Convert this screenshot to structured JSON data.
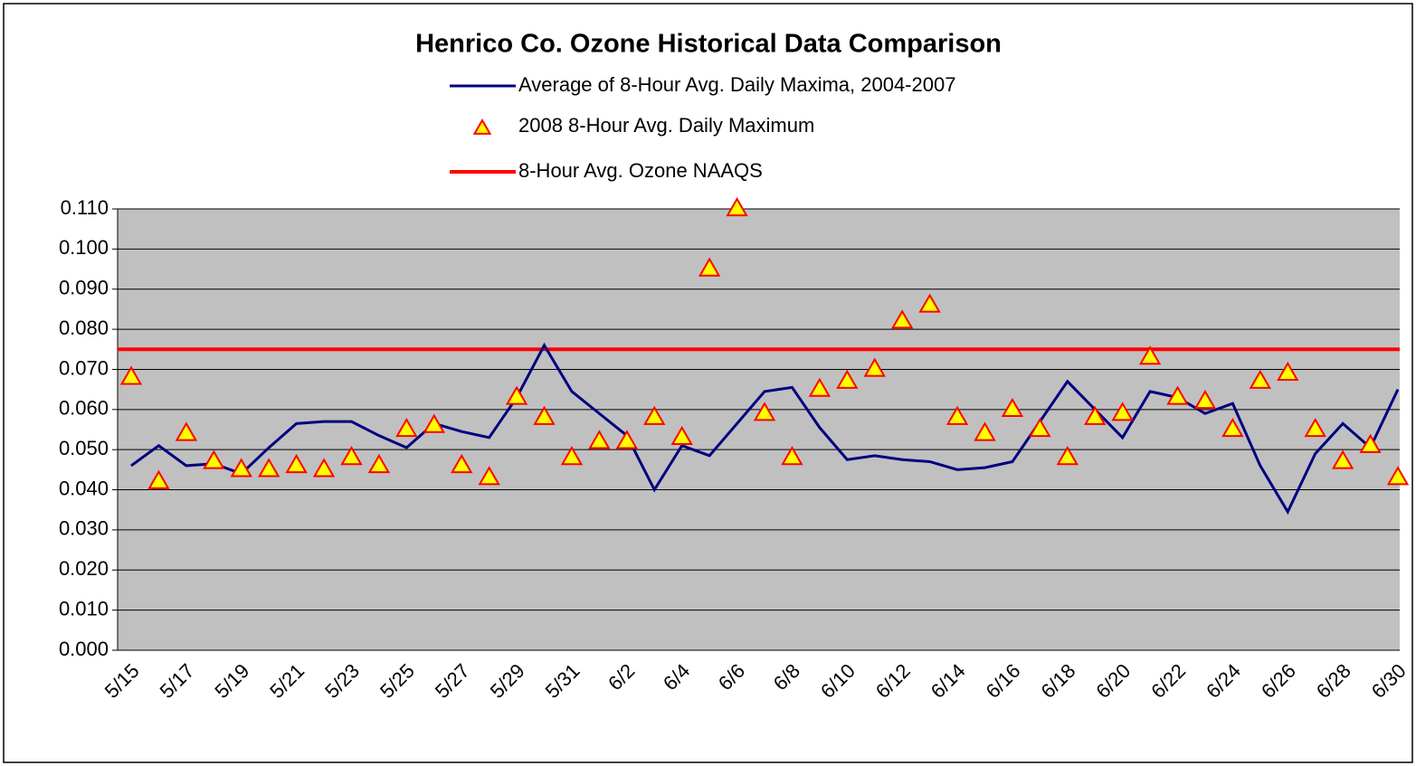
{
  "chart_data": {
    "type": "line",
    "title": "Henrico Co. Ozone Historical Data Comparison",
    "categories": [
      "5/15",
      null,
      "5/17",
      null,
      "5/19",
      null,
      "5/21",
      null,
      "5/23",
      null,
      "5/25",
      null,
      "5/27",
      null,
      "5/29",
      null,
      "5/31",
      null,
      "6/2",
      null,
      "6/4",
      null,
      "6/6",
      null,
      "6/8",
      null,
      "6/10",
      null,
      "6/12",
      null,
      "6/14",
      null,
      "6/16",
      null,
      "6/18",
      null,
      "6/20",
      null,
      "6/22",
      null,
      "6/24",
      null,
      "6/26",
      null,
      "6/28",
      null,
      "6/30"
    ],
    "series": [
      {
        "name": "Average of 8-Hour Avg. Daily Maxima, 2004-2007",
        "color": "#000080",
        "style": "line",
        "values": [
          0.046,
          0.051,
          0.046,
          0.0465,
          0.044,
          0.0505,
          0.0565,
          0.057,
          0.057,
          0.0535,
          0.0505,
          0.0565,
          0.0545,
          0.053,
          0.063,
          0.076,
          0.0645,
          0.059,
          0.0535,
          0.04,
          0.051,
          0.0485,
          0.0565,
          0.0645,
          0.0655,
          0.0555,
          0.0475,
          0.0485,
          0.0475,
          0.047,
          0.045,
          0.0455,
          0.047,
          0.057,
          0.067,
          0.06,
          0.053,
          0.0645,
          0.063,
          0.059,
          0.0615,
          0.046,
          0.0345,
          0.049,
          0.0565,
          0.0505,
          0.065
        ]
      },
      {
        "name": "2008 8-Hour Avg. Daily Maximum",
        "color": "#ffff00",
        "style": "marker",
        "values": [
          0.068,
          0.042,
          0.054,
          0.047,
          0.045,
          0.045,
          0.046,
          0.045,
          0.048,
          0.046,
          0.055,
          0.056,
          0.046,
          0.043,
          0.063,
          0.058,
          0.048,
          0.052,
          0.052,
          0.058,
          0.053,
          0.095,
          0.11,
          0.059,
          0.048,
          0.065,
          0.067,
          0.07,
          0.082,
          0.086,
          0.058,
          0.054,
          0.06,
          0.055,
          0.048,
          0.058,
          0.059,
          0.073,
          0.063,
          0.062,
          0.055,
          0.067,
          0.069,
          0.055,
          0.047,
          0.051,
          0.043
        ]
      },
      {
        "name": "8-Hour Avg. Ozone NAAQS",
        "color": "#ff0000",
        "style": "line",
        "values": [
          0.075,
          0.075,
          0.075,
          0.075,
          0.075,
          0.075,
          0.075,
          0.075,
          0.075,
          0.075,
          0.075,
          0.075,
          0.075,
          0.075,
          0.075,
          0.075,
          0.075,
          0.075,
          0.075,
          0.075,
          0.075,
          0.075,
          0.075,
          0.075,
          0.075,
          0.075,
          0.075,
          0.075,
          0.075,
          0.075,
          0.075,
          0.075,
          0.075,
          0.075,
          0.075,
          0.075,
          0.075,
          0.075,
          0.075,
          0.075,
          0.075,
          0.075,
          0.075,
          0.075,
          0.075,
          0.075,
          0.075
        ]
      }
    ],
    "ylim": [
      0,
      0.11
    ],
    "yticks": [
      {
        "value": 0,
        "label": "0.000"
      },
      {
        "value": 0.01,
        "label": "0.010"
      },
      {
        "value": 0.02,
        "label": "0.020"
      },
      {
        "value": 0.03,
        "label": "0.030"
      },
      {
        "value": 0.04,
        "label": "0.040"
      },
      {
        "value": 0.05,
        "label": "0.050"
      },
      {
        "value": 0.06,
        "label": "0.060"
      },
      {
        "value": 0.07,
        "label": "0.070"
      },
      {
        "value": 0.08,
        "label": "0.080"
      },
      {
        "value": 0.09,
        "label": "0.090"
      },
      {
        "value": 0.1,
        "label": "0.100"
      },
      {
        "value": 0.11,
        "label": "0.110"
      }
    ],
    "grid": true,
    "legend": "top"
  }
}
